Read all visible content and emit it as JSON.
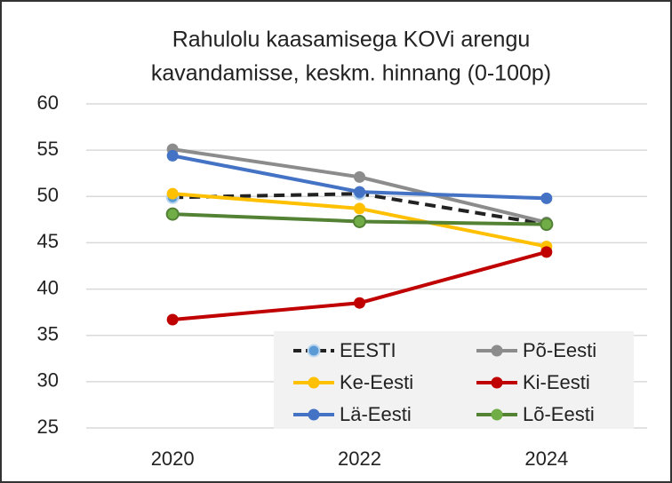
{
  "chart_data": {
    "type": "line",
    "title": [
      "Rahulolu kaasamisega KOVi arengu",
      "kavandamisse, keskm. hinnang (0-100p)"
    ],
    "categories": [
      "2020",
      "2022",
      "2024"
    ],
    "ylim": [
      25,
      60
    ],
    "yticks": [
      25,
      30,
      35,
      40,
      45,
      50,
      55,
      60
    ],
    "grid": true,
    "legend": "lower right",
    "series": [
      {
        "name": "EESTI",
        "color": "#222222",
        "marker_color": "#5b9bd5",
        "dashed": true,
        "values": [
          49.9,
          50.3,
          47.0
        ]
      },
      {
        "name": "Põ-Eesti",
        "color": "#8c8c8c",
        "values": [
          55.1,
          52.1,
          47.2
        ]
      },
      {
        "name": "Ke-Eesti",
        "color": "#ffc000",
        "values": [
          50.3,
          48.7,
          44.6
        ]
      },
      {
        "name": "Ki-Eesti",
        "color": "#c00000",
        "values": [
          36.7,
          38.5,
          44.0
        ]
      },
      {
        "name": "Lä-Eesti",
        "color": "#4472c4",
        "values": [
          54.4,
          50.5,
          49.8
        ]
      },
      {
        "name": "Lõ-Eesti",
        "color": "#548235",
        "marker_color": "#70ad47",
        "values": [
          48.1,
          47.3,
          47.0
        ]
      }
    ]
  }
}
